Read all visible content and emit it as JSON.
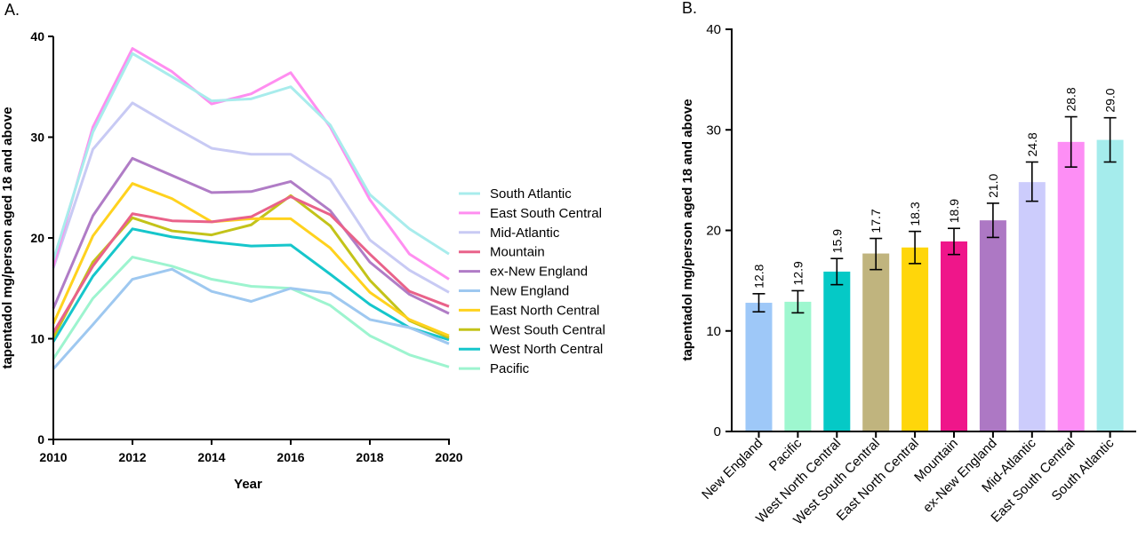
{
  "chart_data": [
    {
      "panel_label": "A.",
      "type": "line",
      "xlabel": "Year",
      "ylabel": "tapentadol mg/person aged 18 and above",
      "xlim": [
        2010,
        2020
      ],
      "ylim": [
        0,
        40
      ],
      "x_ticks": [
        "2010",
        "2012",
        "2014",
        "2016",
        "2018",
        "2020"
      ],
      "y_ticks": [
        "0",
        "10",
        "20",
        "30",
        "40"
      ],
      "x": [
        2010,
        2011,
        2012,
        2013,
        2014,
        2015,
        2016,
        2017,
        2018,
        2019,
        2020
      ],
      "grid": false,
      "legend_placement": "right",
      "series": [
        {
          "name": "South Atlantic",
          "color": "#a8ecec",
          "values": [
            17.8,
            30.5,
            38.3,
            36.0,
            33.6,
            33.8,
            35.0,
            31.2,
            24.3,
            20.9,
            18.4
          ]
        },
        {
          "name": "East South Central",
          "color": "#ff8ef0",
          "values": [
            17.2,
            31.0,
            38.8,
            36.5,
            33.3,
            34.3,
            36.4,
            31.0,
            23.8,
            18.4,
            15.9
          ]
        },
        {
          "name": "Mid-Atlantic",
          "color": "#c8caf4",
          "values": [
            17.0,
            28.8,
            33.4,
            31.1,
            28.9,
            28.3,
            28.3,
            25.8,
            19.8,
            16.8,
            14.6
          ]
        },
        {
          "name": "Mountain",
          "color": "#e9628a",
          "values": [
            10.6,
            17.2,
            22.4,
            21.7,
            21.6,
            22.1,
            24.1,
            22.3,
            18.4,
            14.7,
            13.2
          ]
        },
        {
          "name": "ex-New England",
          "color": "#b07cc6",
          "values": [
            13.0,
            22.2,
            27.9,
            26.2,
            24.5,
            24.6,
            25.6,
            22.7,
            17.6,
            14.4,
            12.5
          ]
        },
        {
          "name": "New England",
          "color": "#9ec8f0",
          "values": [
            7.0,
            11.4,
            15.9,
            16.9,
            14.7,
            13.7,
            15.0,
            14.5,
            11.9,
            11.1,
            9.5
          ]
        },
        {
          "name": "East North Central",
          "color": "#ffd21e",
          "values": [
            11.5,
            20.2,
            25.4,
            23.9,
            21.6,
            21.9,
            21.9,
            19.0,
            14.6,
            11.9,
            10.3
          ]
        },
        {
          "name": "West South Central",
          "color": "#c3c319",
          "values": [
            10.1,
            17.6,
            22.0,
            20.7,
            20.3,
            21.3,
            24.2,
            21.2,
            15.8,
            11.8,
            10.1
          ]
        },
        {
          "name": "West North Central",
          "color": "#16c6cb",
          "values": [
            9.7,
            16.2,
            20.9,
            20.1,
            19.6,
            19.2,
            19.3,
            16.4,
            13.4,
            11.1,
            9.9
          ]
        },
        {
          "name": "Pacific",
          "color": "#9df4cf",
          "values": [
            8.0,
            14.0,
            18.1,
            17.2,
            15.9,
            15.2,
            15.0,
            13.3,
            10.3,
            8.4,
            7.2
          ]
        }
      ]
    },
    {
      "panel_label": "B.",
      "type": "bar",
      "xlabel": "",
      "ylabel": "tapentadol mg/person aged 18 and above",
      "ylim": [
        0,
        40
      ],
      "y_ticks": [
        "0",
        "10",
        "20",
        "30",
        "40"
      ],
      "grid": false,
      "categories": [
        "New England",
        "Pacific",
        "West North Central",
        "West South Central",
        "East North Central",
        "Mountain",
        "ex-New England",
        "Mid-Atlantic",
        "East South Central",
        "South Atlantic"
      ],
      "values": [
        12.8,
        12.9,
        15.9,
        17.7,
        18.3,
        18.9,
        21.0,
        24.8,
        28.8,
        29.0
      ],
      "labels": [
        "12.8",
        "12.9",
        "15.9",
        "17.7",
        "18.3",
        "18.9",
        "21.0",
        "24.8",
        "28.8",
        "29.0"
      ],
      "error_low": [
        11.9,
        11.8,
        14.6,
        16.1,
        16.7,
        17.6,
        19.3,
        22.9,
        26.3,
        26.8
      ],
      "error_high": [
        13.7,
        14.0,
        17.2,
        19.2,
        19.9,
        20.2,
        22.7,
        26.8,
        31.3,
        31.2
      ],
      "colors": [
        "#9ec8f8",
        "#9ef7cf",
        "#05c9c6",
        "#c0b47e",
        "#ffd60a",
        "#ef168a",
        "#ad78c4",
        "#ccccfc",
        "#fd8ef5",
        "#a5ecec"
      ]
    }
  ]
}
